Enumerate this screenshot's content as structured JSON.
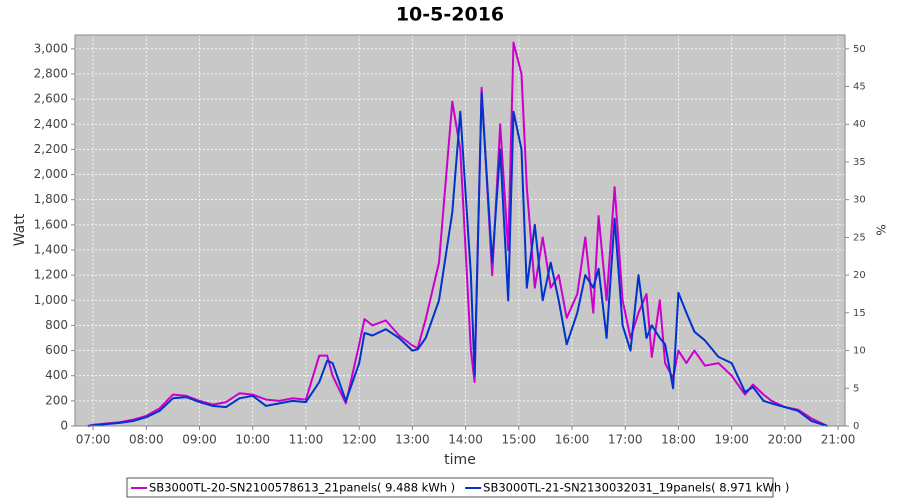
{
  "chart_data": {
    "type": "line",
    "title": "10-5-2016",
    "x_label": "time",
    "y_label": "Watt",
    "y2_label": "%",
    "x": [
      6.9,
      7,
      7.25,
      7.5,
      7.75,
      8,
      8.25,
      8.5,
      8.75,
      9,
      9.25,
      9.5,
      9.75,
      10,
      10.25,
      10.5,
      10.75,
      11,
      11.25,
      11.4,
      11.5,
      11.75,
      12,
      12.1,
      12.25,
      12.5,
      12.75,
      13,
      13.1,
      13.25,
      13.5,
      13.75,
      13.9,
      14.1,
      14.17,
      14.3,
      14.5,
      14.65,
      14.8,
      14.9,
      15.05,
      15.15,
      15.3,
      15.45,
      15.6,
      15.75,
      15.9,
      16.1,
      16.25,
      16.4,
      16.5,
      16.65,
      16.8,
      16.95,
      17.1,
      17.25,
      17.4,
      17.5,
      17.65,
      17.75,
      17.9,
      18,
      18.15,
      18.3,
      18.5,
      18.75,
      19,
      19.25,
      19.4,
      19.6,
      19.75,
      20,
      20.25,
      20.5,
      20.8
    ],
    "series": [
      {
        "name": "SB3000TL-20-SN2100578613_21panels( 9.488 kWh )",
        "color": "#cc00cc",
        "values": [
          0,
          10,
          20,
          30,
          50,
          80,
          140,
          250,
          240,
          200,
          170,
          190,
          260,
          250,
          210,
          200,
          220,
          210,
          560,
          560,
          400,
          180,
          650,
          850,
          800,
          840,
          720,
          640,
          620,
          850,
          1300,
          2580,
          2200,
          600,
          350,
          2690,
          1200,
          2400,
          1400,
          3050,
          2800,
          1900,
          1100,
          1500,
          1100,
          1200,
          860,
          1050,
          1500,
          900,
          1670,
          1000,
          1900,
          1000,
          700,
          900,
          1050,
          550,
          1000,
          500,
          380,
          600,
          500,
          600,
          480,
          500,
          400,
          250,
          330,
          250,
          200,
          150,
          130,
          60,
          0
        ]
      },
      {
        "name": "SB3000TL-21-SN2130032031_19panels( 8.971 kWh )",
        "color": "#0033cc",
        "values": [
          0,
          5,
          15,
          25,
          40,
          70,
          120,
          220,
          230,
          190,
          160,
          150,
          220,
          240,
          160,
          180,
          200,
          190,
          350,
          520,
          500,
          200,
          500,
          740,
          720,
          770,
          700,
          600,
          610,
          700,
          1000,
          1700,
          2500,
          1200,
          400,
          2650,
          1300,
          2200,
          1000,
          2500,
          2200,
          1100,
          1600,
          1000,
          1300,
          1000,
          650,
          900,
          1200,
          1100,
          1250,
          700,
          1650,
          800,
          600,
          1200,
          700,
          800,
          700,
          650,
          300,
          1060,
          900,
          750,
          680,
          550,
          500,
          270,
          310,
          200,
          180,
          150,
          120,
          40,
          0
        ]
      }
    ],
    "xlim": [
      6.66,
      21.13
    ],
    "xticks": [
      {
        "value": 7,
        "label": "07:00"
      },
      {
        "value": 8,
        "label": "08:00"
      },
      {
        "value": 9,
        "label": "09:00"
      },
      {
        "value": 10,
        "label": "10:00"
      },
      {
        "value": 11,
        "label": "11:00"
      },
      {
        "value": 12,
        "label": "12:00"
      },
      {
        "value": 13,
        "label": "13:00"
      },
      {
        "value": 14,
        "label": "14:00"
      },
      {
        "value": 15,
        "label": "15:00"
      },
      {
        "value": 16,
        "label": "16:00"
      },
      {
        "value": 17,
        "label": "17:00"
      },
      {
        "value": 18,
        "label": "18:00"
      },
      {
        "value": 19,
        "label": "19:00"
      },
      {
        "value": 20,
        "label": "20:00"
      },
      {
        "value": 21,
        "label": "21:00"
      }
    ],
    "ylim": [
      0,
      3110
    ],
    "yticks": [
      0,
      200,
      400,
      600,
      800,
      {
        "value": 1000,
        "label": "1,000"
      },
      {
        "value": 1200,
        "label": "1,200"
      },
      {
        "value": 1400,
        "label": "1,400"
      },
      {
        "value": 1600,
        "label": "1,600"
      },
      {
        "value": 1800,
        "label": "1,800"
      },
      {
        "value": 2000,
        "label": "2,000"
      },
      {
        "value": 2200,
        "label": "2,200"
      },
      {
        "value": 2400,
        "label": "2,400"
      },
      {
        "value": 2600,
        "label": "2,600"
      },
      {
        "value": 2800,
        "label": "2,800"
      },
      {
        "value": 3000,
        "label": "3,000"
      }
    ],
    "y2lim": [
      0,
      51.83
    ],
    "y2ticks": [
      0,
      5,
      10,
      15,
      20,
      25,
      30,
      35,
      40,
      45,
      50
    ],
    "grid": true,
    "legend": "bottom"
  }
}
